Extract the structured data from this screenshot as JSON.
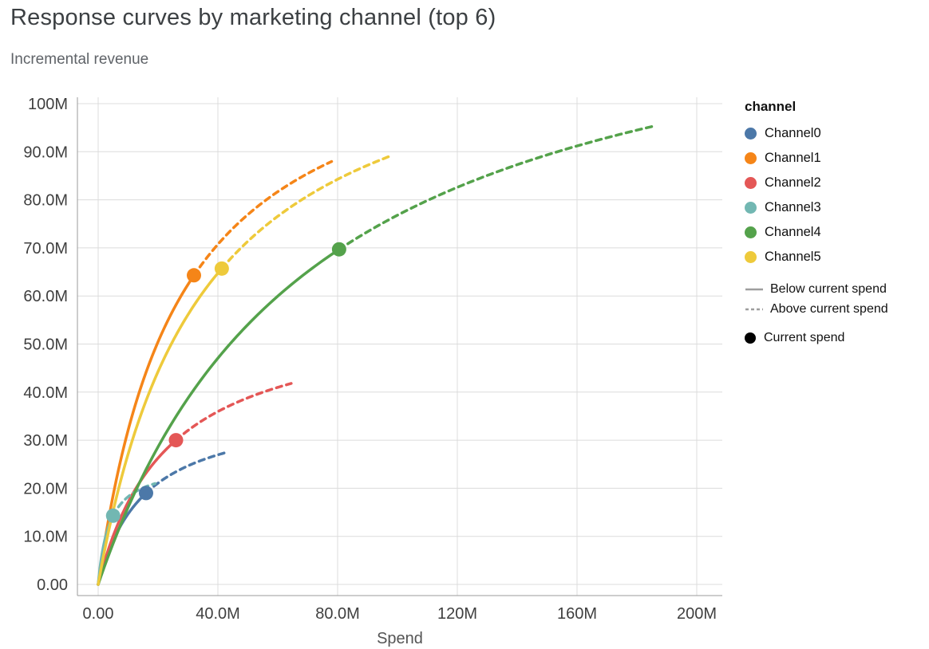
{
  "chart_data": {
    "type": "line",
    "title": "Response curves by marketing channel (top 6)",
    "subtitle": "Incremental revenue",
    "xlabel": "Spend",
    "ylabel": "Incremental revenue",
    "xlim": [
      0,
      200
    ],
    "ylim": [
      0,
      100
    ],
    "units": "millions",
    "grid": true,
    "legend_position": "right",
    "x_ticks": [
      {
        "value": 0,
        "label": "0.00"
      },
      {
        "value": 40,
        "label": "40.0M"
      },
      {
        "value": 80,
        "label": "80.0M"
      },
      {
        "value": 120,
        "label": "120M"
      },
      {
        "value": 160,
        "label": "160M"
      },
      {
        "value": 200,
        "label": "200M"
      }
    ],
    "y_ticks": [
      {
        "value": 0,
        "label": "0.00"
      },
      {
        "value": 10,
        "label": "10.0M"
      },
      {
        "value": 20,
        "label": "20.0M"
      },
      {
        "value": 30,
        "label": "30.0M"
      },
      {
        "value": 40,
        "label": "40.0M"
      },
      {
        "value": 50,
        "label": "50.0M"
      },
      {
        "value": 60,
        "label": "60.0M"
      },
      {
        "value": 70,
        "label": "70.0M"
      },
      {
        "value": 80,
        "label": "80.0M"
      },
      {
        "value": 90,
        "label": "90.0M"
      },
      {
        "value": 100,
        "label": "100M"
      }
    ],
    "legend": {
      "title": "channel",
      "styles": [
        {
          "label": "Below current spend",
          "dash": false
        },
        {
          "label": "Above current spend",
          "dash": true
        }
      ],
      "point_label": "Current spend",
      "point_color": "#000000",
      "stroke_swatch_color": "#9e9e9e"
    },
    "curve_model": "saturation: y = A * x / (x + K), x and y in millions",
    "series": [
      {
        "name": "Channel0",
        "color": "#4c78a8",
        "A": 37.4,
        "K": 15.5,
        "current_spend": {
          "x": 16,
          "y": 19.0
        },
        "x_max": 43,
        "end": {
          "x": 43,
          "y": 27.5
        }
      },
      {
        "name": "Channel1",
        "color": "#f58518",
        "A": 118.3,
        "K": 26.9,
        "current_spend": {
          "x": 32,
          "y": 64.3
        },
        "x_max": 78,
        "end": {
          "x": 78,
          "y": 88.0
        }
      },
      {
        "name": "Channel2",
        "color": "#e45756",
        "A": 56.9,
        "K": 23.3,
        "current_spend": {
          "x": 26,
          "y": 30.0
        },
        "x_max": 64.5,
        "end": {
          "x": 64.5,
          "y": 41.8
        }
      },
      {
        "name": "Channel3",
        "color": "#72b7b2",
        "A": 25.2,
        "K": 3.82,
        "current_spend": {
          "x": 5,
          "y": 14.3
        },
        "x_max": 19,
        "end": {
          "x": 19,
          "y": 21.0
        }
      },
      {
        "name": "Channel4",
        "color": "#54a24b",
        "A": 132.7,
        "K": 72.8,
        "current_spend": {
          "x": 80.5,
          "y": 69.7
        },
        "x_max": 186,
        "end": {
          "x": 186,
          "y": 95.4
        }
      },
      {
        "name": "Channel5",
        "color": "#eeca3b",
        "A": 120.6,
        "K": 34.5,
        "current_spend": {
          "x": 41.3,
          "y": 65.7
        },
        "x_max": 98,
        "end": {
          "x": 98,
          "y": 89.2
        }
      }
    ]
  }
}
